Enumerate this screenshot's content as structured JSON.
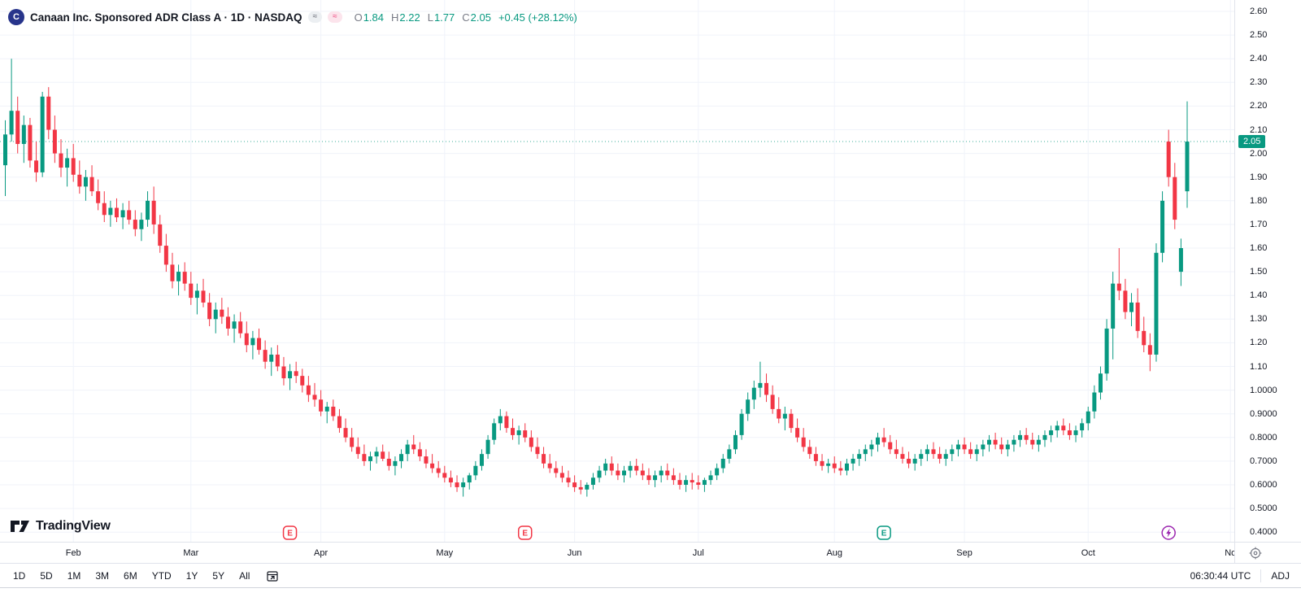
{
  "header": {
    "logo_letter": "C",
    "symbol_title": "Canaan Inc. Sponsored ADR Class A · 1D · NASDAQ",
    "badge_gray": "≈",
    "badge_pink": "≈",
    "ohlc": {
      "open_label": "O",
      "open": "1.84",
      "high_label": "H",
      "high": "2.22",
      "low_label": "L",
      "low": "1.77",
      "close_label": "C",
      "close": "2.05",
      "change": "+0.45 (+28.12%)"
    }
  },
  "watermark": {
    "brand": "TradingView"
  },
  "price_axis": {
    "last_price_label": "2.05"
  },
  "footer": {
    "ranges": [
      "1D",
      "5D",
      "1M",
      "3M",
      "6M",
      "YTD",
      "1Y",
      "5Y",
      "All"
    ],
    "clock": "06:30:44 UTC",
    "adjust_label": "ADJ"
  },
  "chart_data": {
    "type": "candlestick",
    "title": "Canaan Inc. Sponsored ADR Class A",
    "interval": "1D",
    "exchange": "NASDAQ",
    "up_color": "#089981",
    "down_color": "#f23645",
    "last_price": 2.05,
    "ohlc_readout": {
      "open": 1.84,
      "high": 2.22,
      "low": 1.77,
      "close": 2.05,
      "change": 0.45,
      "change_pct": 28.12
    },
    "ylim": [
      0.4,
      2.6
    ],
    "grid": true,
    "price_axis_labels": [
      {
        "value": 2.6,
        "label": "2.60"
      },
      {
        "value": 2.5,
        "label": "2.50"
      },
      {
        "value": 2.4,
        "label": "2.40"
      },
      {
        "value": 2.3,
        "label": "2.30"
      },
      {
        "value": 2.2,
        "label": "2.20"
      },
      {
        "value": 2.1,
        "label": "2.10"
      },
      {
        "value": 2.0,
        "label": "2.00"
      },
      {
        "value": 1.9,
        "label": "1.90"
      },
      {
        "value": 1.8,
        "label": "1.80"
      },
      {
        "value": 1.7,
        "label": "1.70"
      },
      {
        "value": 1.6,
        "label": "1.60"
      },
      {
        "value": 1.5,
        "label": "1.50"
      },
      {
        "value": 1.4,
        "label": "1.40"
      },
      {
        "value": 1.3,
        "label": "1.30"
      },
      {
        "value": 1.2,
        "label": "1.20"
      },
      {
        "value": 1.1,
        "label": "1.10"
      },
      {
        "value": 1.0,
        "label": "1.0000"
      },
      {
        "value": 0.9,
        "label": "0.9000"
      },
      {
        "value": 0.8,
        "label": "0.8000"
      },
      {
        "value": 0.7,
        "label": "0.7000"
      },
      {
        "value": 0.6,
        "label": "0.6000"
      },
      {
        "value": 0.5,
        "label": "0.5000"
      },
      {
        "value": 0.4,
        "label": "0.4000"
      }
    ],
    "x_labels": [
      {
        "label": "Feb",
        "index": 11
      },
      {
        "label": "Mar",
        "index": 30
      },
      {
        "label": "Apr",
        "index": 51
      },
      {
        "label": "May",
        "index": 71
      },
      {
        "label": "Jun",
        "index": 92
      },
      {
        "label": "Jul",
        "index": 112
      },
      {
        "label": "Aug",
        "index": 134
      },
      {
        "label": "Sep",
        "index": 155
      },
      {
        "label": "Oct",
        "index": 175
      },
      {
        "label": "No",
        "index": 198
      }
    ],
    "markers": [
      {
        "index": 46,
        "kind": "earnings",
        "glyph": "E",
        "color": "#f23645"
      },
      {
        "index": 84,
        "kind": "earnings",
        "glyph": "E",
        "color": "#f23645"
      },
      {
        "index": 142,
        "kind": "earnings",
        "glyph": "E",
        "color": "#089981"
      },
      {
        "index": 188,
        "kind": "event",
        "glyph": "bolt",
        "color": "#9c27b0"
      }
    ],
    "candles": [
      [
        1.95,
        2.14,
        1.82,
        2.08
      ],
      [
        2.08,
        2.4,
        2.05,
        2.18
      ],
      [
        2.18,
        2.24,
        2.0,
        2.04
      ],
      [
        2.04,
        2.16,
        1.96,
        2.12
      ],
      [
        2.12,
        2.15,
        1.94,
        1.97
      ],
      [
        1.97,
        2.05,
        1.88,
        1.92
      ],
      [
        1.92,
        2.26,
        1.9,
        2.24
      ],
      [
        2.24,
        2.28,
        2.06,
        2.1
      ],
      [
        2.1,
        2.16,
        1.96,
        2.0
      ],
      [
        2.0,
        2.06,
        1.9,
        1.94
      ],
      [
        1.94,
        2.02,
        1.86,
        1.98
      ],
      [
        1.98,
        2.04,
        1.88,
        1.91
      ],
      [
        1.91,
        1.97,
        1.83,
        1.86
      ],
      [
        1.86,
        1.93,
        1.8,
        1.9
      ],
      [
        1.9,
        1.95,
        1.82,
        1.84
      ],
      [
        1.84,
        1.89,
        1.76,
        1.79
      ],
      [
        1.79,
        1.84,
        1.71,
        1.74
      ],
      [
        1.74,
        1.8,
        1.69,
        1.77
      ],
      [
        1.77,
        1.81,
        1.71,
        1.73
      ],
      [
        1.73,
        1.79,
        1.68,
        1.76
      ],
      [
        1.76,
        1.8,
        1.7,
        1.72
      ],
      [
        1.72,
        1.76,
        1.65,
        1.68
      ],
      [
        1.68,
        1.75,
        1.63,
        1.72
      ],
      [
        1.72,
        1.84,
        1.69,
        1.8
      ],
      [
        1.8,
        1.86,
        1.66,
        1.7
      ],
      [
        1.7,
        1.74,
        1.58,
        1.61
      ],
      [
        1.61,
        1.66,
        1.5,
        1.53
      ],
      [
        1.53,
        1.58,
        1.43,
        1.46
      ],
      [
        1.46,
        1.53,
        1.4,
        1.5
      ],
      [
        1.5,
        1.54,
        1.42,
        1.45
      ],
      [
        1.45,
        1.5,
        1.36,
        1.39
      ],
      [
        1.39,
        1.45,
        1.32,
        1.42
      ],
      [
        1.42,
        1.47,
        1.35,
        1.37
      ],
      [
        1.37,
        1.41,
        1.27,
        1.3
      ],
      [
        1.3,
        1.37,
        1.24,
        1.34
      ],
      [
        1.34,
        1.39,
        1.28,
        1.31
      ],
      [
        1.31,
        1.35,
        1.23,
        1.26
      ],
      [
        1.26,
        1.32,
        1.2,
        1.29
      ],
      [
        1.29,
        1.33,
        1.22,
        1.24
      ],
      [
        1.24,
        1.29,
        1.16,
        1.19
      ],
      [
        1.19,
        1.25,
        1.13,
        1.22
      ],
      [
        1.22,
        1.26,
        1.15,
        1.17
      ],
      [
        1.17,
        1.21,
        1.09,
        1.12
      ],
      [
        1.12,
        1.18,
        1.06,
        1.15
      ],
      [
        1.15,
        1.19,
        1.08,
        1.1
      ],
      [
        1.1,
        1.14,
        1.02,
        1.05
      ],
      [
        1.05,
        1.11,
        1.0,
        1.08
      ],
      [
        1.08,
        1.12,
        1.03,
        1.06
      ],
      [
        1.06,
        1.09,
        0.99,
        1.02
      ],
      [
        1.02,
        1.06,
        0.95,
        0.98
      ],
      [
        0.98,
        1.03,
        0.93,
        0.96
      ],
      [
        0.96,
        1.0,
        0.89,
        0.91
      ],
      [
        0.91,
        0.95,
        0.86,
        0.93
      ],
      [
        0.93,
        0.96,
        0.87,
        0.89
      ],
      [
        0.89,
        0.92,
        0.82,
        0.84
      ],
      [
        0.84,
        0.88,
        0.78,
        0.8
      ],
      [
        0.8,
        0.84,
        0.74,
        0.76
      ],
      [
        0.76,
        0.8,
        0.71,
        0.73
      ],
      [
        0.73,
        0.77,
        0.68,
        0.7
      ],
      [
        0.7,
        0.74,
        0.66,
        0.72
      ],
      [
        0.72,
        0.76,
        0.69,
        0.74
      ],
      [
        0.74,
        0.77,
        0.7,
        0.71
      ],
      [
        0.71,
        0.74,
        0.66,
        0.68
      ],
      [
        0.68,
        0.72,
        0.64,
        0.7
      ],
      [
        0.7,
        0.75,
        0.67,
        0.73
      ],
      [
        0.73,
        0.79,
        0.7,
        0.77
      ],
      [
        0.77,
        0.81,
        0.73,
        0.75
      ],
      [
        0.75,
        0.78,
        0.7,
        0.72
      ],
      [
        0.72,
        0.75,
        0.67,
        0.69
      ],
      [
        0.69,
        0.73,
        0.65,
        0.67
      ],
      [
        0.67,
        0.7,
        0.63,
        0.65
      ],
      [
        0.65,
        0.68,
        0.61,
        0.63
      ],
      [
        0.63,
        0.66,
        0.59,
        0.61
      ],
      [
        0.61,
        0.64,
        0.57,
        0.59
      ],
      [
        0.59,
        0.63,
        0.55,
        0.61
      ],
      [
        0.61,
        0.65,
        0.58,
        0.64
      ],
      [
        0.64,
        0.7,
        0.62,
        0.68
      ],
      [
        0.68,
        0.75,
        0.66,
        0.73
      ],
      [
        0.73,
        0.81,
        0.71,
        0.79
      ],
      [
        0.79,
        0.88,
        0.77,
        0.86
      ],
      [
        0.86,
        0.92,
        0.83,
        0.89
      ],
      [
        0.89,
        0.91,
        0.82,
        0.84
      ],
      [
        0.84,
        0.88,
        0.79,
        0.81
      ],
      [
        0.81,
        0.85,
        0.77,
        0.83
      ],
      [
        0.83,
        0.86,
        0.78,
        0.8
      ],
      [
        0.8,
        0.83,
        0.74,
        0.76
      ],
      [
        0.76,
        0.8,
        0.71,
        0.73
      ],
      [
        0.73,
        0.76,
        0.67,
        0.69
      ],
      [
        0.69,
        0.73,
        0.65,
        0.67
      ],
      [
        0.67,
        0.7,
        0.63,
        0.65
      ],
      [
        0.65,
        0.68,
        0.61,
        0.63
      ],
      [
        0.63,
        0.66,
        0.59,
        0.61
      ],
      [
        0.61,
        0.64,
        0.57,
        0.59
      ],
      [
        0.59,
        0.62,
        0.56,
        0.58
      ],
      [
        0.58,
        0.61,
        0.55,
        0.6
      ],
      [
        0.6,
        0.65,
        0.58,
        0.63
      ],
      [
        0.63,
        0.68,
        0.61,
        0.66
      ],
      [
        0.66,
        0.71,
        0.64,
        0.69
      ],
      [
        0.69,
        0.72,
        0.64,
        0.66
      ],
      [
        0.66,
        0.69,
        0.62,
        0.64
      ],
      [
        0.64,
        0.68,
        0.61,
        0.66
      ],
      [
        0.66,
        0.7,
        0.63,
        0.68
      ],
      [
        0.68,
        0.71,
        0.64,
        0.66
      ],
      [
        0.66,
        0.69,
        0.62,
        0.64
      ],
      [
        0.64,
        0.67,
        0.6,
        0.62
      ],
      [
        0.62,
        0.66,
        0.59,
        0.64
      ],
      [
        0.64,
        0.68,
        0.61,
        0.66
      ],
      [
        0.66,
        0.69,
        0.62,
        0.64
      ],
      [
        0.64,
        0.67,
        0.6,
        0.62
      ],
      [
        0.62,
        0.65,
        0.58,
        0.6
      ],
      [
        0.6,
        0.64,
        0.57,
        0.62
      ],
      [
        0.62,
        0.65,
        0.58,
        0.61
      ],
      [
        0.61,
        0.64,
        0.58,
        0.6
      ],
      [
        0.6,
        0.63,
        0.57,
        0.62
      ],
      [
        0.62,
        0.66,
        0.6,
        0.64
      ],
      [
        0.64,
        0.69,
        0.62,
        0.67
      ],
      [
        0.67,
        0.73,
        0.65,
        0.71
      ],
      [
        0.71,
        0.77,
        0.69,
        0.75
      ],
      [
        0.75,
        0.83,
        0.73,
        0.81
      ],
      [
        0.81,
        0.92,
        0.79,
        0.9
      ],
      [
        0.9,
        0.99,
        0.87,
        0.96
      ],
      [
        0.96,
        1.04,
        0.92,
        1.01
      ],
      [
        1.01,
        1.12,
        0.97,
        1.03
      ],
      [
        1.03,
        1.07,
        0.95,
        0.98
      ],
      [
        0.98,
        1.02,
        0.9,
        0.92
      ],
      [
        0.92,
        0.97,
        0.86,
        0.88
      ],
      [
        0.88,
        0.93,
        0.83,
        0.9
      ],
      [
        0.9,
        0.92,
        0.82,
        0.84
      ],
      [
        0.84,
        0.88,
        0.78,
        0.8
      ],
      [
        0.8,
        0.84,
        0.74,
        0.76
      ],
      [
        0.76,
        0.79,
        0.71,
        0.73
      ],
      [
        0.73,
        0.76,
        0.68,
        0.7
      ],
      [
        0.7,
        0.73,
        0.66,
        0.68
      ],
      [
        0.68,
        0.71,
        0.65,
        0.69
      ],
      [
        0.69,
        0.72,
        0.65,
        0.67
      ],
      [
        0.67,
        0.7,
        0.64,
        0.66
      ],
      [
        0.66,
        0.71,
        0.64,
        0.69
      ],
      [
        0.69,
        0.73,
        0.66,
        0.71
      ],
      [
        0.71,
        0.75,
        0.68,
        0.73
      ],
      [
        0.73,
        0.77,
        0.7,
        0.75
      ],
      [
        0.75,
        0.79,
        0.72,
        0.77
      ],
      [
        0.77,
        0.82,
        0.74,
        0.8
      ],
      [
        0.8,
        0.84,
        0.76,
        0.78
      ],
      [
        0.78,
        0.81,
        0.73,
        0.75
      ],
      [
        0.75,
        0.79,
        0.71,
        0.73
      ],
      [
        0.73,
        0.76,
        0.69,
        0.71
      ],
      [
        0.71,
        0.74,
        0.67,
        0.69
      ],
      [
        0.69,
        0.73,
        0.66,
        0.71
      ],
      [
        0.71,
        0.75,
        0.68,
        0.73
      ],
      [
        0.73,
        0.77,
        0.7,
        0.75
      ],
      [
        0.75,
        0.78,
        0.71,
        0.73
      ],
      [
        0.73,
        0.76,
        0.69,
        0.71
      ],
      [
        0.71,
        0.75,
        0.68,
        0.73
      ],
      [
        0.73,
        0.77,
        0.7,
        0.75
      ],
      [
        0.75,
        0.79,
        0.72,
        0.77
      ],
      [
        0.77,
        0.8,
        0.73,
        0.75
      ],
      [
        0.75,
        0.78,
        0.71,
        0.73
      ],
      [
        0.73,
        0.77,
        0.7,
        0.75
      ],
      [
        0.75,
        0.79,
        0.72,
        0.77
      ],
      [
        0.77,
        0.81,
        0.74,
        0.79
      ],
      [
        0.79,
        0.82,
        0.75,
        0.77
      ],
      [
        0.77,
        0.8,
        0.73,
        0.75
      ],
      [
        0.75,
        0.79,
        0.72,
        0.77
      ],
      [
        0.77,
        0.81,
        0.74,
        0.79
      ],
      [
        0.79,
        0.83,
        0.76,
        0.81
      ],
      [
        0.81,
        0.84,
        0.77,
        0.79
      ],
      [
        0.79,
        0.82,
        0.75,
        0.77
      ],
      [
        0.77,
        0.81,
        0.74,
        0.79
      ],
      [
        0.79,
        0.83,
        0.76,
        0.81
      ],
      [
        0.81,
        0.85,
        0.78,
        0.83
      ],
      [
        0.83,
        0.87,
        0.8,
        0.85
      ],
      [
        0.85,
        0.88,
        0.81,
        0.83
      ],
      [
        0.83,
        0.86,
        0.79,
        0.81
      ],
      [
        0.81,
        0.85,
        0.78,
        0.83
      ],
      [
        0.83,
        0.88,
        0.8,
        0.86
      ],
      [
        0.86,
        0.93,
        0.83,
        0.91
      ],
      [
        0.91,
        1.02,
        0.88,
        0.99
      ],
      [
        0.99,
        1.1,
        0.96,
        1.07
      ],
      [
        1.07,
        1.3,
        1.04,
        1.26
      ],
      [
        1.26,
        1.5,
        1.13,
        1.45
      ],
      [
        1.45,
        1.6,
        1.38,
        1.42
      ],
      [
        1.42,
        1.47,
        1.3,
        1.33
      ],
      [
        1.33,
        1.41,
        1.27,
        1.37
      ],
      [
        1.37,
        1.43,
        1.22,
        1.25
      ],
      [
        1.25,
        1.31,
        1.16,
        1.19
      ],
      [
        1.19,
        1.24,
        1.08,
        1.15
      ],
      [
        1.15,
        1.62,
        1.12,
        1.58
      ],
      [
        1.58,
        1.84,
        1.54,
        1.8
      ],
      [
        2.05,
        2.1,
        1.86,
        1.9
      ],
      [
        1.9,
        1.96,
        1.68,
        1.72
      ],
      [
        1.5,
        1.64,
        1.44,
        1.6
      ],
      [
        1.84,
        2.22,
        1.77,
        2.05
      ]
    ]
  }
}
